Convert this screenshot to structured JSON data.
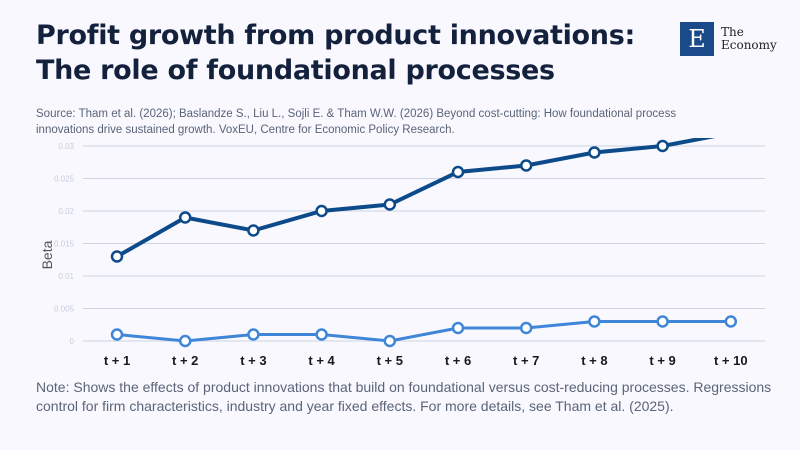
{
  "header": {
    "title_line1": "Profit growth from product innovations:",
    "title_line2": "The role of foundational processes",
    "source": "Source: Tham et al. (2026); Baslandze S., Liu L., Sojli E. & Tham W.W. (2026) Beyond cost-cutting: How foundational process innovations drive sustained growth. VoxEU, Centre for Economic Policy Research."
  },
  "logo": {
    "mark": "E",
    "line1": "The",
    "line2": "Economy"
  },
  "note": "Note: Shows the effects of product innovations that build on foundational versus cost-reducing processes. Regressions control for firm characteristics, industry and year fixed effects. For more details, see Tham et al. (2025).",
  "chart_data": {
    "type": "line",
    "categories": [
      "t + 1",
      "t + 2",
      "t + 3",
      "t + 4",
      "t + 5",
      "t + 6",
      "t + 7",
      "t + 8",
      "t + 9",
      "t + 10"
    ],
    "series": [
      {
        "color": "#0d4a8a",
        "values": [
          0.013,
          0.019,
          0.017,
          0.02,
          0.021,
          0.026,
          0.027,
          0.029,
          0.03,
          0.032
        ]
      },
      {
        "color": "#3f86d8",
        "values": [
          0.001,
          0.0,
          0.001,
          0.001,
          0.0,
          0.002,
          0.002,
          0.003,
          0.003,
          0.003
        ]
      }
    ],
    "ylabel": "Beta",
    "xlabel": "",
    "ylim": [
      0,
      0.03
    ],
    "yticks": [
      "0",
      "0.005",
      "0.01",
      "0.015",
      "0.02",
      "0.025",
      "0.03"
    ],
    "grid": true
  }
}
